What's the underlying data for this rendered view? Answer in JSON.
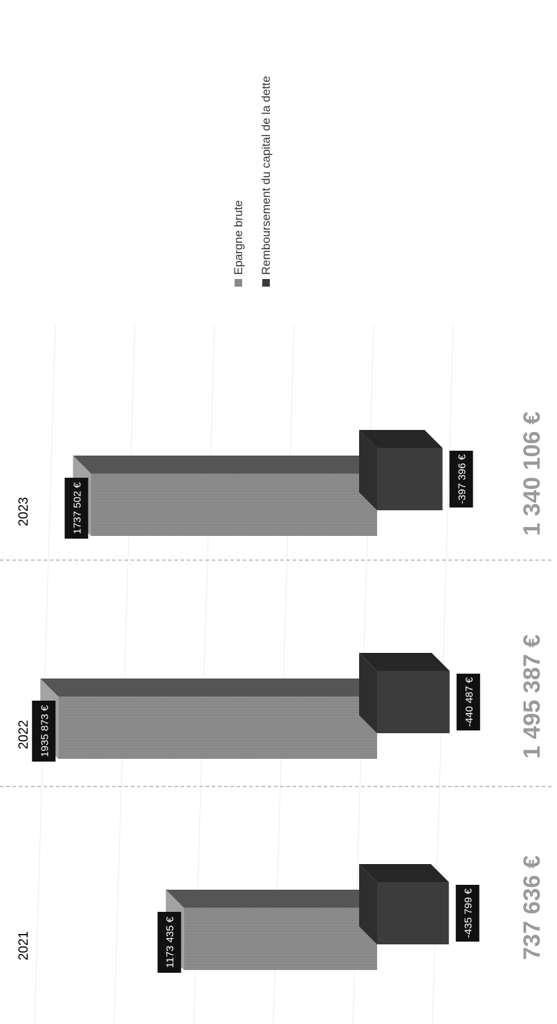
{
  "chart_data": {
    "type": "bar",
    "orientation": "horizontal",
    "rotation": "rotated 90° counter-clockwise",
    "categories": [
      "2021",
      "2022",
      "2023"
    ],
    "series": [
      {
        "name": "Epargne brute",
        "values": [
          1173435,
          1935873,
          1737502
        ]
      },
      {
        "name": "Remboursement du capital de la dette",
        "values": [
          -435799,
          -440487,
          -397396
        ]
      }
    ],
    "data_labels": {
      "Epargne brute": [
        "1173 435 €",
        "1935 873 €",
        "1737 502 €"
      ],
      "Remboursement du capital de la dette": [
        "-435 799 €",
        "-440 487 €",
        "-397 396 €"
      ]
    },
    "annotations": [
      {
        "category": "2021",
        "label": "737 636 €",
        "value": 737636
      },
      {
        "category": "2022",
        "label": "1 495 387 €",
        "value": 1495387
      },
      {
        "category": "2023",
        "label": "1 340 106 €",
        "value": 1340106
      }
    ],
    "grid": true,
    "legend": "top-right",
    "colors": {
      "Epargne brute": "#8a8a8a",
      "Remboursement du capital de la dette": "#3c3c3c",
      "annotation": "#9a9a9a",
      "label_background": "#111111"
    }
  }
}
